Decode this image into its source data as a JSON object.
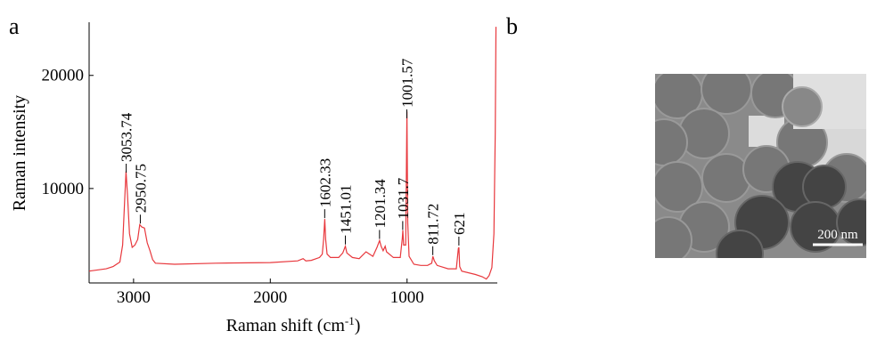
{
  "chart_data": {
    "type": "line",
    "y_label": "Raman intensity",
    "x_label": [
      "Raman shift (cm",
      "-1",
      ")"
    ],
    "x": [
      3325,
      3200,
      3150,
      3100,
      3080,
      3065,
      3055,
      3045,
      3030,
      3010,
      2990,
      2970,
      2955,
      2940,
      2920,
      2900,
      2880,
      2860,
      2840,
      2700,
      2400,
      2000,
      1800,
      1760,
      1740,
      1700,
      1640,
      1620,
      1610,
      1602,
      1595,
      1585,
      1560,
      1500,
      1470,
      1451,
      1440,
      1400,
      1350,
      1300,
      1250,
      1220,
      1201,
      1190,
      1175,
      1160,
      1150,
      1100,
      1050,
      1035,
      1031,
      1025,
      1010,
      1001,
      995,
      985,
      950,
      900,
      850,
      820,
      811,
      800,
      780,
      700,
      640,
      625,
      621,
      615,
      600,
      500,
      450,
      420,
      400,
      380,
      365,
      355,
      350
    ],
    "values": [
      2700,
      2900,
      3100,
      3500,
      5000,
      9000,
      11500,
      9500,
      6000,
      4800,
      5000,
      5500,
      6800,
      6600,
      6500,
      5200,
      4500,
      3700,
      3400,
      3300,
      3400,
      3450,
      3600,
      3800,
      3600,
      3650,
      3900,
      4200,
      5500,
      7300,
      5500,
      4200,
      3900,
      3900,
      4300,
      4900,
      4300,
      3900,
      3800,
      4400,
      4000,
      4800,
      5400,
      4900,
      4500,
      4900,
      4400,
      3900,
      3900,
      5600,
      6300,
      5000,
      5000,
      16800,
      7000,
      4000,
      3300,
      3200,
      3200,
      3400,
      4000,
      3600,
      3200,
      2900,
      2900,
      4700,
      4800,
      3100,
      2700,
      2400,
      2200,
      2000,
      2300,
      3000,
      6000,
      15000,
      24300
    ],
    "color": "#e8383d",
    "peaks": [
      3053.74,
      2950.75,
      1602.33,
      1451.01,
      1201.34,
      1031.7,
      1001.57,
      811.72,
      621
    ],
    "xlim": [
      3325,
      340
    ],
    "xticks": [
      3000,
      2000,
      1000
    ],
    "ylim": [
      1650,
      24700
    ],
    "yticks": [
      10000,
      20000
    ],
    "grid": false
  },
  "panel_labels": [
    "a",
    "b"
  ],
  "image": {
    "scale_bar": "200 nm"
  }
}
